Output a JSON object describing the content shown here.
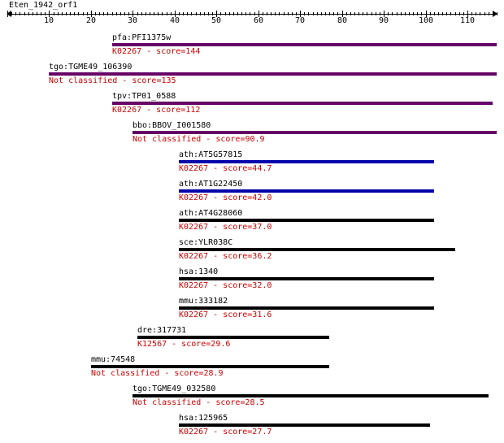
{
  "title": "Eten_1942_orf1",
  "axis": {
    "min": 0,
    "max": 117,
    "ticks": [
      10,
      20,
      30,
      40,
      50,
      60,
      70,
      80,
      90,
      100,
      110
    ]
  },
  "colors": {
    "score_text": "#cc0000",
    "purple": "#660066",
    "blue": "#0000aa",
    "black": "#000000"
  },
  "hits": [
    {
      "name": "pfa:PFI1375w",
      "score": "K02267 - score=144",
      "start": 25,
      "end": 117,
      "color": "#660066"
    },
    {
      "name": "tgo:TGME49_106390",
      "score": "Not classified - score=135",
      "start": 10,
      "end": 117,
      "color": "#660066"
    },
    {
      "name": "tpv:TP01_0588",
      "score": "K02267 - score=112",
      "start": 25,
      "end": 116,
      "color": "#660066"
    },
    {
      "name": "bbo:BBOV_I001580",
      "score": "Not classified - score=90.9",
      "start": 30,
      "end": 117,
      "color": "#660066"
    },
    {
      "name": "ath:AT5G57815",
      "score": "K02267 - score=44.7",
      "start": 41,
      "end": 102,
      "color": "#0000aa"
    },
    {
      "name": "ath:AT1G22450",
      "score": "K02267 - score=42.0",
      "start": 41,
      "end": 102,
      "color": "#0000aa"
    },
    {
      "name": "ath:AT4G28060",
      "score": "K02267 - score=37.0",
      "start": 41,
      "end": 102,
      "color": "#000000"
    },
    {
      "name": "sce:YLR038C",
      "score": "K02267 - score=36.2",
      "start": 41,
      "end": 107,
      "color": "#000000"
    },
    {
      "name": "hsa:1340",
      "score": "K02267 - score=32.0",
      "start": 41,
      "end": 102,
      "color": "#000000"
    },
    {
      "name": "mmu:333182",
      "score": "K02267 - score=31.6",
      "start": 41,
      "end": 102,
      "color": "#000000"
    },
    {
      "name": "dre:317731",
      "score": "K12567 - score=29.6",
      "start": 31,
      "end": 77,
      "color": "#000000"
    },
    {
      "name": "mmu:74548",
      "score": "Not classified - score=28.9",
      "start": 20,
      "end": 77,
      "color": "#000000"
    },
    {
      "name": "tgo:TGME49_032580",
      "score": "Not classified - score=28.5",
      "start": 30,
      "end": 115,
      "color": "#000000"
    },
    {
      "name": "hsa:125965",
      "score": "K02267 - score=27.7",
      "start": 41,
      "end": 101,
      "color": "#000000"
    }
  ]
}
